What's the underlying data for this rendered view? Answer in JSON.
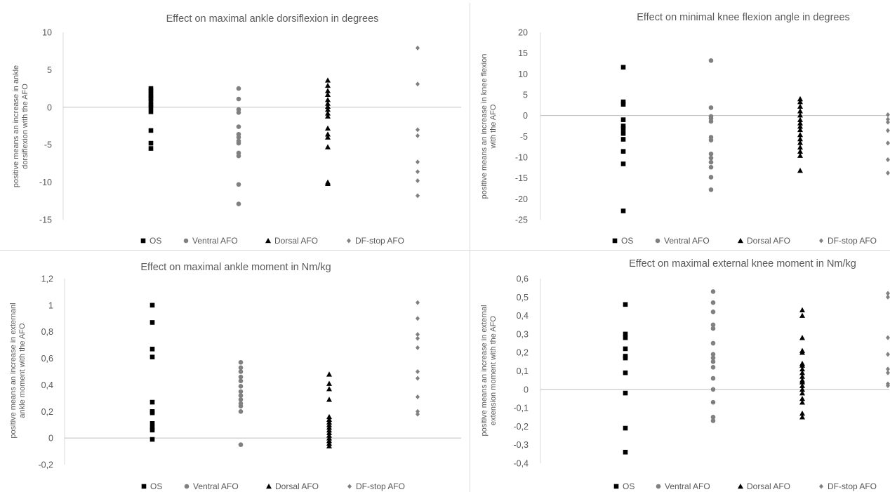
{
  "chart_data": [
    {
      "type": "scatter",
      "title": "Effect on maximal ankle dorsiflexion in degrees",
      "ylabel": [
        "positive  means an increase in ankle",
        "dorsiflexion with the AFO"
      ],
      "ylim": [
        -15,
        10
      ],
      "yticks": [
        "10",
        "5",
        "0",
        "-5",
        "-10",
        "-15"
      ],
      "ytick_values": [
        10,
        5,
        0,
        -5,
        -10,
        -15
      ],
      "grid": false,
      "legend_position": "bottom",
      "series": [
        {
          "name": "OS",
          "marker": "square",
          "color": "#000000",
          "x": 1,
          "values": [
            2.5,
            2.2,
            1.8,
            1.5,
            1.2,
            0.8,
            0.3,
            0,
            -0.6,
            -3.1,
            -4.8,
            -5.5
          ]
        },
        {
          "name": "Ventral AFO",
          "marker": "circle",
          "color": "#808080",
          "x": 2,
          "values": [
            2.5,
            1.1,
            -0.3,
            -0.7,
            -2.6,
            -3.6,
            -4.0,
            -4.5,
            -4.8,
            -6.1,
            -6.5,
            -10.3,
            -12.9
          ]
        },
        {
          "name": "Dorsal AFO",
          "marker": "triangle",
          "color": "#000000",
          "x": 3,
          "values": [
            3.6,
            2.9,
            2.2,
            1.7,
            1.0,
            0.5,
            0.1,
            -0.3,
            -0.8,
            -1.2,
            -2.8,
            -3.6,
            -4.0,
            -5.3,
            -10.0,
            -10.2
          ]
        },
        {
          "name": "DF-stop AFO",
          "marker": "diamond",
          "color": "#808080",
          "x": 4,
          "values": [
            7.9,
            3.1,
            -3.0,
            -3.8,
            -7.3,
            -8.6,
            -9.8,
            -11.8
          ]
        }
      ]
    },
    {
      "type": "scatter",
      "title": "Effect on minimal knee flexion angle in degrees",
      "ylabel": [
        "positive means an increase in knee flexion",
        "with the AFO"
      ],
      "ylim": [
        -25,
        20
      ],
      "yticks": [
        "20",
        "15",
        "10",
        "5",
        "0",
        "-5",
        "-10",
        "-15",
        "-20",
        "-25"
      ],
      "ytick_values": [
        20,
        15,
        10,
        5,
        0,
        -5,
        -10,
        -15,
        -20,
        -25
      ],
      "grid": false,
      "legend_position": "bottom",
      "series": [
        {
          "name": "OS",
          "marker": "square",
          "color": "#000000",
          "x": 1,
          "values": [
            11.6,
            3.3,
            2.7,
            -1.0,
            -2.5,
            -3.2,
            -4.3,
            -5.7,
            -8.6,
            -11.6,
            -22.9
          ]
        },
        {
          "name": "Ventral AFO",
          "marker": "circle",
          "color": "#808080",
          "x": 2,
          "values": [
            13.2,
            1.9,
            -0.2,
            -0.7,
            -1.4,
            -5.2,
            -5.9,
            -9.2,
            -10.2,
            -11.2,
            -12.4,
            -14.8,
            -17.8
          ]
        },
        {
          "name": "Dorsal AFO",
          "marker": "triangle",
          "color": "#000000",
          "x": 3,
          "values": [
            4.0,
            3.3,
            2.2,
            1.1,
            0.1,
            -1.0,
            -1.8,
            -2.6,
            -3.4,
            -4.6,
            -5.6,
            -6.5,
            -7.6,
            -8.6,
            -9.6,
            -13.2
          ]
        },
        {
          "name": "DF-stop AFO",
          "marker": "diamond",
          "color": "#808080",
          "x": 4,
          "values": [
            0.2,
            -0.9,
            -1.6,
            -3.6,
            -6.6,
            -10.6,
            -13.8
          ]
        }
      ]
    },
    {
      "type": "scatter",
      "title": "Effect on maximal ankle moment in Nm/kg",
      "ylabel": [
        "positive means an increase in externanl",
        "ankle moment  with the AFO"
      ],
      "ylim": [
        -0.2,
        1.2
      ],
      "yticks": [
        "1,2",
        "1",
        "0,8",
        "0,6",
        "0,4",
        "0,2",
        "0",
        "-0,2"
      ],
      "ytick_values": [
        1.2,
        1.0,
        0.8,
        0.6,
        0.4,
        0.2,
        0,
        -0.2
      ],
      "grid": false,
      "legend_position": "bottom",
      "series": [
        {
          "name": "OS",
          "marker": "square",
          "color": "#000000",
          "x": 1,
          "values": [
            1.0,
            0.87,
            0.67,
            0.61,
            0.27,
            0.2,
            0.19,
            0.11,
            0.08,
            0.06,
            -0.01
          ]
        },
        {
          "name": "Ventral AFO",
          "marker": "circle",
          "color": "#808080",
          "x": 2,
          "values": [
            0.57,
            0.53,
            0.5,
            0.46,
            0.43,
            0.39,
            0.35,
            0.32,
            0.29,
            0.26,
            0.24,
            0.2,
            -0.05
          ]
        },
        {
          "name": "Dorsal AFO",
          "marker": "triangle",
          "color": "#000000",
          "x": 3,
          "values": [
            0.48,
            0.41,
            0.37,
            0.29,
            0.16,
            0.14,
            0.12,
            0.1,
            0.08,
            0.06,
            0.04,
            0.02,
            0.0,
            -0.02,
            -0.04,
            -0.06
          ]
        },
        {
          "name": "DF-stop AFO",
          "marker": "diamond",
          "color": "#808080",
          "x": 4,
          "values": [
            1.02,
            0.9,
            0.78,
            0.75,
            0.68,
            0.5,
            0.45,
            0.31,
            0.2,
            0.18
          ]
        }
      ]
    },
    {
      "type": "scatter",
      "title": "Effect on maximal external  knee moment in Nm/kg",
      "ylabel": [
        "positive means an increase in external",
        "extension moment with the AFO"
      ],
      "ylim": [
        -0.4,
        0.6
      ],
      "yticks": [
        "0,6",
        "0,5",
        "0,4",
        "0,3",
        "0,2",
        "0,1",
        "0",
        "-0,1",
        "-0,2",
        "-0,3",
        "-0,4"
      ],
      "ytick_values": [
        0.6,
        0.5,
        0.4,
        0.3,
        0.2,
        0.1,
        0,
        -0.1,
        -0.2,
        -0.3,
        -0.4
      ],
      "grid": false,
      "legend_position": "bottom",
      "series": [
        {
          "name": "OS",
          "marker": "square",
          "color": "#000000",
          "x": 1,
          "values": [
            0.46,
            0.3,
            0.28,
            0.22,
            0.18,
            0.17,
            0.09,
            -0.02,
            -0.21,
            -0.34
          ]
        },
        {
          "name": "Ventral AFO",
          "marker": "circle",
          "color": "#808080",
          "x": 2,
          "values": [
            0.53,
            0.47,
            0.42,
            0.35,
            0.33,
            0.25,
            0.19,
            0.17,
            0.15,
            0.12,
            0.06,
            0.0,
            -0.07,
            -0.15,
            -0.17
          ]
        },
        {
          "name": "Dorsal AFO",
          "marker": "triangle",
          "color": "#000000",
          "x": 3,
          "values": [
            0.43,
            0.4,
            0.28,
            0.21,
            0.2,
            0.14,
            0.13,
            0.11,
            0.09,
            0.07,
            0.05,
            0.04,
            0.02,
            0.0,
            -0.02,
            -0.05,
            -0.07,
            -0.13,
            -0.15
          ]
        },
        {
          "name": "DF-stop AFO",
          "marker": "diamond",
          "color": "#808080",
          "x": 4,
          "values": [
            0.52,
            0.5,
            0.28,
            0.19,
            0.11,
            0.09,
            0.03,
            0.02
          ]
        }
      ]
    }
  ]
}
